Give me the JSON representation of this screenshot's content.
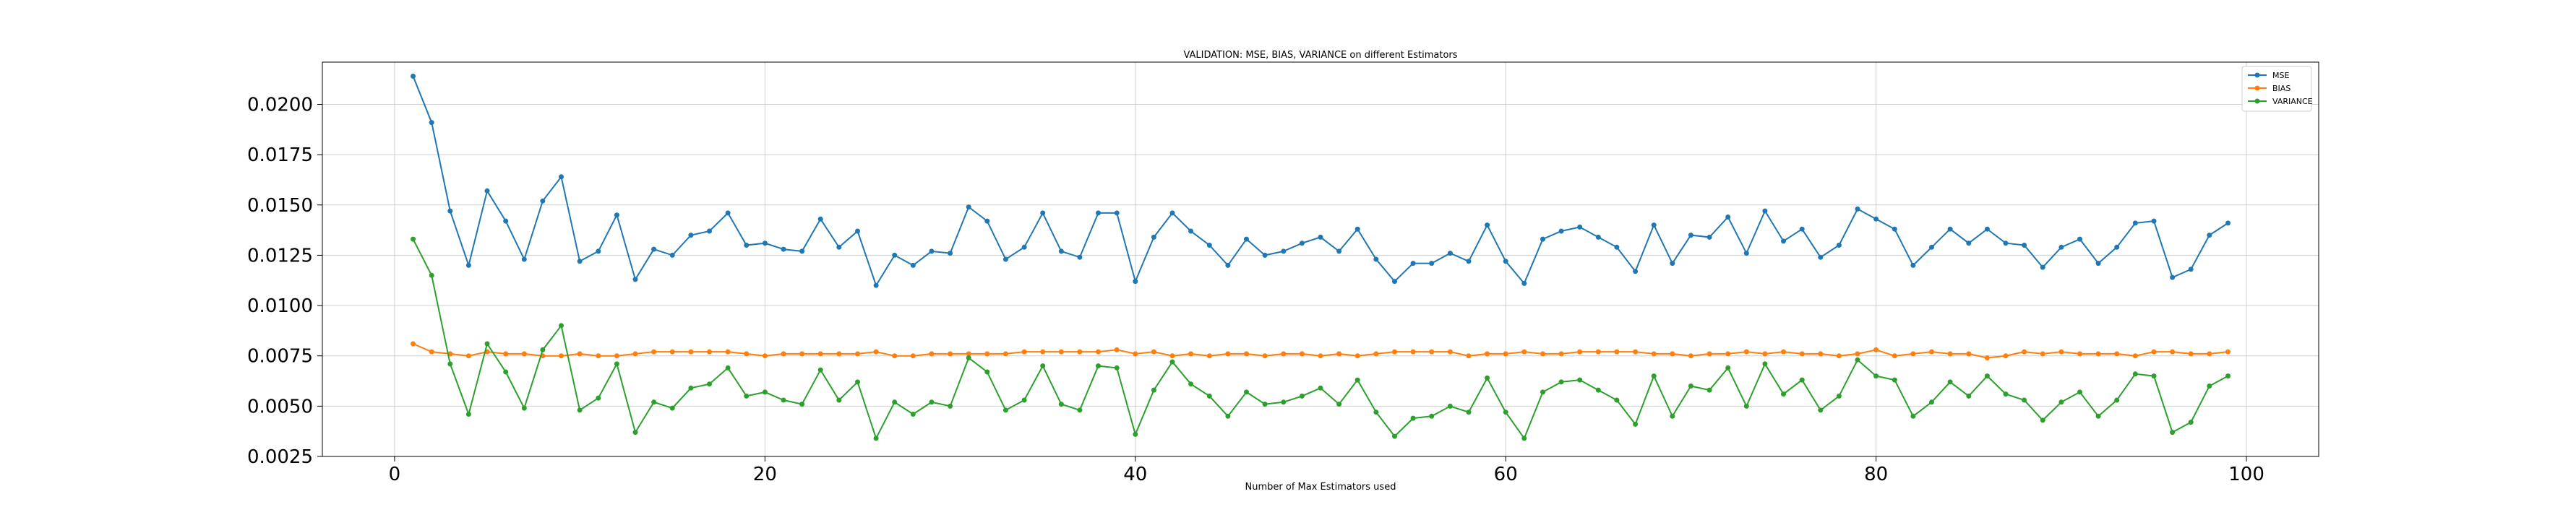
{
  "chart_data": {
    "type": "line",
    "title": "VALIDATION: MSE, BIAS, VARIANCE on different Estimators",
    "xlabel": "Number of Max Estimators used",
    "ylabel": "",
    "xlim": [
      -3.9,
      103.9
    ],
    "ylim": [
      0.0025,
      0.0221
    ],
    "xticks": [
      0,
      20,
      40,
      60,
      80,
      100
    ],
    "xtick_labels": [
      "0",
      "20",
      "40",
      "60",
      "80",
      "100"
    ],
    "yticks": [
      0.0025,
      0.005,
      0.0075,
      0.01,
      0.0125,
      0.015,
      0.0175,
      0.02
    ],
    "ytick_labels": [
      "0.0025",
      "0.0050",
      "0.0075",
      "0.0100",
      "0.0125",
      "0.0150",
      "0.0175",
      "0.0200"
    ],
    "grid": true,
    "legend_position": "top-right",
    "x": [
      1,
      2,
      3,
      4,
      5,
      6,
      7,
      8,
      9,
      10,
      11,
      12,
      13,
      14,
      15,
      16,
      17,
      18,
      19,
      20,
      21,
      22,
      23,
      24,
      25,
      26,
      27,
      28,
      29,
      30,
      31,
      32,
      33,
      34,
      35,
      36,
      37,
      38,
      39,
      40,
      41,
      42,
      43,
      44,
      45,
      46,
      47,
      48,
      49,
      50,
      51,
      52,
      53,
      54,
      55,
      56,
      57,
      58,
      59,
      60,
      61,
      62,
      63,
      64,
      65,
      66,
      67,
      68,
      69,
      70,
      71,
      72,
      73,
      74,
      75,
      76,
      77,
      78,
      79,
      80,
      81,
      82,
      83,
      84,
      85,
      86,
      87,
      88,
      89,
      90,
      91,
      92,
      93,
      94,
      95,
      96,
      97,
      98,
      99
    ],
    "series": [
      {
        "name": "MSE",
        "color": "#1f77b4",
        "values": [
          0.0214,
          0.0191,
          0.0147,
          0.012,
          0.0157,
          0.0142,
          0.0123,
          0.0152,
          0.0164,
          0.0122,
          0.0127,
          0.0145,
          0.0113,
          0.0128,
          0.0125,
          0.0135,
          0.0137,
          0.0146,
          0.013,
          0.0131,
          0.0128,
          0.0127,
          0.0143,
          0.0129,
          0.0137,
          0.011,
          0.0125,
          0.012,
          0.0127,
          0.0126,
          0.0149,
          0.0142,
          0.0123,
          0.0129,
          0.0146,
          0.0127,
          0.0124,
          0.0146,
          0.0146,
          0.0112,
          0.0134,
          0.0146,
          0.0137,
          0.013,
          0.012,
          0.0133,
          0.0125,
          0.0127,
          0.0131,
          0.0134,
          0.0127,
          0.0138,
          0.0123,
          0.0112,
          0.0121,
          0.0121,
          0.0126,
          0.0122,
          0.014,
          0.0122,
          0.0111,
          0.0133,
          0.0137,
          0.0139,
          0.0134,
          0.0129,
          0.0117,
          0.014,
          0.0121,
          0.0135,
          0.0134,
          0.0144,
          0.0126,
          0.0147,
          0.0132,
          0.0138,
          0.0124,
          0.013,
          0.0148,
          0.0143,
          0.0138,
          0.012,
          0.0129,
          0.0138,
          0.0131,
          0.0138,
          0.0131,
          0.013,
          0.0119,
          0.0129,
          0.0133,
          0.0121,
          0.0129,
          0.0141,
          0.0142,
          0.0114,
          0.0118,
          0.0135,
          0.0141
        ]
      },
      {
        "name": "BIAS",
        "color": "#ff7f0e",
        "values": [
          0.0081,
          0.0077,
          0.0076,
          0.0075,
          0.0077,
          0.0076,
          0.0076,
          0.0075,
          0.0075,
          0.0076,
          0.0075,
          0.0075,
          0.0076,
          0.0077,
          0.0077,
          0.0077,
          0.0077,
          0.0077,
          0.0076,
          0.0075,
          0.0076,
          0.0076,
          0.0076,
          0.0076,
          0.0076,
          0.0077,
          0.0075,
          0.0075,
          0.0076,
          0.0076,
          0.0076,
          0.0076,
          0.0076,
          0.0077,
          0.0077,
          0.0077,
          0.0077,
          0.0077,
          0.0078,
          0.0076,
          0.0077,
          0.0075,
          0.0076,
          0.0075,
          0.0076,
          0.0076,
          0.0075,
          0.0076,
          0.0076,
          0.0075,
          0.0076,
          0.0075,
          0.0076,
          0.0077,
          0.0077,
          0.0077,
          0.0077,
          0.0075,
          0.0076,
          0.0076,
          0.0077,
          0.0076,
          0.0076,
          0.0077,
          0.0077,
          0.0077,
          0.0077,
          0.0076,
          0.0076,
          0.0075,
          0.0076,
          0.0076,
          0.0077,
          0.0076,
          0.0077,
          0.0076,
          0.0076,
          0.0075,
          0.0076,
          0.0078,
          0.0075,
          0.0076,
          0.0077,
          0.0076,
          0.0076,
          0.0074,
          0.0075,
          0.0077,
          0.0076,
          0.0077,
          0.0076,
          0.0076,
          0.0076,
          0.0075,
          0.0077,
          0.0077,
          0.0076,
          0.0076,
          0.0077
        ]
      },
      {
        "name": "VARIANCE",
        "color": "#2ca02c",
        "values": [
          0.0133,
          0.0115,
          0.0071,
          0.0046,
          0.0081,
          0.0067,
          0.0049,
          0.0078,
          0.009,
          0.0048,
          0.0054,
          0.0071,
          0.0037,
          0.0052,
          0.0049,
          0.0059,
          0.0061,
          0.0069,
          0.0055,
          0.0057,
          0.0053,
          0.0051,
          0.0068,
          0.0053,
          0.0062,
          0.0034,
          0.0052,
          0.0046,
          0.0052,
          0.005,
          0.0074,
          0.0067,
          0.0048,
          0.0053,
          0.007,
          0.0051,
          0.0048,
          0.007,
          0.0069,
          0.0036,
          0.0058,
          0.0072,
          0.0061,
          0.0055,
          0.0045,
          0.0057,
          0.0051,
          0.0052,
          0.0055,
          0.0059,
          0.0051,
          0.0063,
          0.0047,
          0.0035,
          0.0044,
          0.0045,
          0.005,
          0.0047,
          0.0064,
          0.0047,
          0.0034,
          0.0057,
          0.0062,
          0.0063,
          0.0058,
          0.0053,
          0.0041,
          0.0065,
          0.0045,
          0.006,
          0.0058,
          0.0069,
          0.005,
          0.0071,
          0.0056,
          0.0063,
          0.0048,
          0.0055,
          0.0073,
          0.0065,
          0.0063,
          0.0045,
          0.0052,
          0.0062,
          0.0055,
          0.0065,
          0.0056,
          0.0053,
          0.0043,
          0.0052,
          0.0057,
          0.0045,
          0.0053,
          0.0066,
          0.0065,
          0.0037,
          0.0042,
          0.006,
          0.0065
        ]
      }
    ]
  }
}
